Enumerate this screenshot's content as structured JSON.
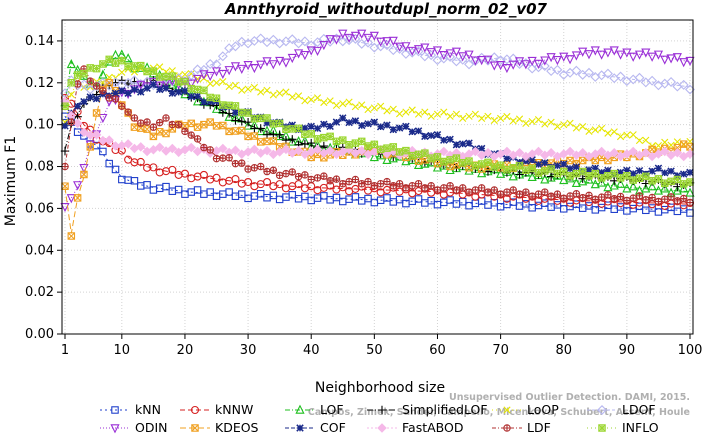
{
  "chart_data": {
    "type": "line",
    "title": "Annthyroid_withoutdupl_norm_02_v07",
    "xlabel": "Neighborhood size",
    "ylabel": "Maximum F1",
    "xlim": [
      1,
      100
    ],
    "ylim": [
      0.0,
      0.15
    ],
    "x_ticks": [
      1,
      10,
      20,
      30,
      40,
      50,
      60,
      70,
      80,
      90,
      100
    ],
    "y_ticks": [
      "0.00",
      "0.02",
      "0.04",
      "0.06",
      "0.08",
      "0.10",
      "0.12",
      "0.14"
    ],
    "grid": true,
    "legend_position": "bottom",
    "watermark": [
      "Campos, Zimek, Sander, Campello, Micenkova, Schubert, Assent, Houle",
      "Unsupervised Outlier Detection. DAMI, 2015."
    ],
    "series": [
      {
        "name": "kNN",
        "color": "#1f3fcc",
        "marker": "square",
        "dash": "2,3",
        "points": [
          [
            1,
            0.104
          ],
          [
            2,
            0.1
          ],
          [
            3,
            0.097
          ],
          [
            4,
            0.094
          ],
          [
            5,
            0.092
          ],
          [
            6,
            0.09
          ],
          [
            7,
            0.086
          ],
          [
            8,
            0.082
          ],
          [
            9,
            0.078
          ],
          [
            10,
            0.075
          ],
          [
            12,
            0.072
          ],
          [
            15,
            0.07
          ],
          [
            20,
            0.068
          ],
          [
            25,
            0.067
          ],
          [
            30,
            0.066
          ],
          [
            40,
            0.065
          ],
          [
            50,
            0.064
          ],
          [
            60,
            0.063
          ],
          [
            70,
            0.062
          ],
          [
            80,
            0.061
          ],
          [
            90,
            0.06
          ],
          [
            100,
            0.059
          ]
        ]
      },
      {
        "name": "kNNW",
        "color": "#d62020",
        "marker": "circle",
        "dash": "5,3",
        "points": [
          [
            1,
            0.114
          ],
          [
            2,
            0.11
          ],
          [
            3,
            0.105
          ],
          [
            4,
            0.1
          ],
          [
            5,
            0.097
          ],
          [
            6,
            0.094
          ],
          [
            7,
            0.092
          ],
          [
            8,
            0.09
          ],
          [
            10,
            0.087
          ],
          [
            12,
            0.082
          ],
          [
            15,
            0.079
          ],
          [
            20,
            0.076
          ],
          [
            25,
            0.074
          ],
          [
            30,
            0.072
          ],
          [
            40,
            0.07
          ],
          [
            50,
            0.069
          ],
          [
            60,
            0.068
          ],
          [
            70,
            0.066
          ],
          [
            80,
            0.064
          ],
          [
            90,
            0.063
          ],
          [
            100,
            0.062
          ]
        ]
      },
      {
        "name": "LOF",
        "color": "#1fbf1f",
        "marker": "triangle",
        "dash": "5,2,1,2",
        "points": [
          [
            1,
            0.11
          ],
          [
            2,
            0.13
          ],
          [
            3,
            0.126
          ],
          [
            4,
            0.122
          ],
          [
            5,
            0.12
          ],
          [
            6,
            0.118
          ],
          [
            7,
            0.125
          ],
          [
            8,
            0.13
          ],
          [
            10,
            0.134
          ],
          [
            12,
            0.128
          ],
          [
            15,
            0.125
          ],
          [
            20,
            0.115
          ],
          [
            25,
            0.108
          ],
          [
            30,
            0.1
          ],
          [
            35,
            0.095
          ],
          [
            40,
            0.09
          ],
          [
            45,
            0.088
          ],
          [
            50,
            0.085
          ],
          [
            55,
            0.083
          ],
          [
            60,
            0.08
          ],
          [
            70,
            0.077
          ],
          [
            80,
            0.074
          ],
          [
            90,
            0.07
          ],
          [
            100,
            0.068
          ]
        ]
      },
      {
        "name": "SimplifiedLOF",
        "color": "#000000",
        "marker": "plus",
        "dash": "6,2,1,2",
        "points": [
          [
            1,
            0.088
          ],
          [
            2,
            0.1
          ],
          [
            3,
            0.105
          ],
          [
            4,
            0.11
          ],
          [
            5,
            0.112
          ],
          [
            6,
            0.115
          ],
          [
            7,
            0.118
          ],
          [
            8,
            0.12
          ],
          [
            10,
            0.12
          ],
          [
            15,
            0.12
          ],
          [
            20,
            0.115
          ],
          [
            25,
            0.108
          ],
          [
            30,
            0.1
          ],
          [
            35,
            0.094
          ],
          [
            40,
            0.09
          ],
          [
            45,
            0.088
          ],
          [
            50,
            0.087
          ],
          [
            55,
            0.085
          ],
          [
            60,
            0.082
          ],
          [
            70,
            0.078
          ],
          [
            80,
            0.076
          ],
          [
            90,
            0.074
          ],
          [
            100,
            0.071
          ]
        ]
      },
      {
        "name": "LoOP",
        "color": "#e6e600",
        "marker": "x",
        "dash": "1,3",
        "points": [
          [
            1,
            0.1
          ],
          [
            2,
            0.115
          ],
          [
            3,
            0.12
          ],
          [
            5,
            0.118
          ],
          [
            8,
            0.122
          ],
          [
            10,
            0.125
          ],
          [
            15,
            0.127
          ],
          [
            20,
            0.124
          ],
          [
            25,
            0.12
          ],
          [
            30,
            0.117
          ],
          [
            35,
            0.115
          ],
          [
            40,
            0.112
          ],
          [
            45,
            0.11
          ],
          [
            50,
            0.108
          ],
          [
            55,
            0.106
          ],
          [
            60,
            0.105
          ],
          [
            70,
            0.103
          ],
          [
            80,
            0.1
          ],
          [
            90,
            0.095
          ],
          [
            95,
            0.09
          ],
          [
            100,
            0.092
          ]
        ]
      },
      {
        "name": "LDOF",
        "color": "#b8b8f0",
        "marker": "diamond",
        "dash": "3,2",
        "points": [
          [
            1,
            0.115
          ],
          [
            2,
            0.12
          ],
          [
            5,
            0.118
          ],
          [
            10,
            0.12
          ],
          [
            15,
            0.12
          ],
          [
            20,
            0.122
          ],
          [
            25,
            0.13
          ],
          [
            28,
            0.138
          ],
          [
            30,
            0.14
          ],
          [
            35,
            0.14
          ],
          [
            40,
            0.139
          ],
          [
            45,
            0.141
          ],
          [
            50,
            0.138
          ],
          [
            55,
            0.135
          ],
          [
            60,
            0.132
          ],
          [
            65,
            0.13
          ],
          [
            70,
            0.132
          ],
          [
            75,
            0.128
          ],
          [
            80,
            0.125
          ],
          [
            85,
            0.124
          ],
          [
            90,
            0.122
          ],
          [
            95,
            0.12
          ],
          [
            100,
            0.118
          ]
        ]
      },
      {
        "name": "ODIN",
        "color": "#9a2fd6",
        "marker": "triangle-down",
        "dash": "1,2",
        "points": [
          [
            1,
            0.062
          ],
          [
            2,
            0.065
          ],
          [
            3,
            0.07
          ],
          [
            5,
            0.09
          ],
          [
            8,
            0.11
          ],
          [
            10,
            0.115
          ],
          [
            15,
            0.12
          ],
          [
            20,
            0.12
          ],
          [
            25,
            0.125
          ],
          [
            30,
            0.128
          ],
          [
            35,
            0.13
          ],
          [
            40,
            0.135
          ],
          [
            45,
            0.143
          ],
          [
            50,
            0.142
          ],
          [
            55,
            0.137
          ],
          [
            60,
            0.135
          ],
          [
            65,
            0.133
          ],
          [
            70,
            0.128
          ],
          [
            75,
            0.13
          ],
          [
            80,
            0.132
          ],
          [
            85,
            0.135
          ],
          [
            90,
            0.134
          ],
          [
            95,
            0.133
          ],
          [
            100,
            0.13
          ]
        ]
      },
      {
        "name": "KDEOS",
        "color": "#f0a020",
        "marker": "square-x",
        "dash": "6,3",
        "points": [
          [
            1,
            0.07
          ],
          [
            2,
            0.048
          ],
          [
            3,
            0.065
          ],
          [
            4,
            0.075
          ],
          [
            5,
            0.09
          ],
          [
            6,
            0.105
          ],
          [
            7,
            0.118
          ],
          [
            8,
            0.12
          ],
          [
            10,
            0.11
          ],
          [
            12,
            0.1
          ],
          [
            15,
            0.095
          ],
          [
            20,
            0.1
          ],
          [
            25,
            0.1
          ],
          [
            30,
            0.095
          ],
          [
            35,
            0.09
          ],
          [
            40,
            0.085
          ],
          [
            45,
            0.086
          ],
          [
            50,
            0.088
          ],
          [
            55,
            0.085
          ],
          [
            60,
            0.082
          ],
          [
            65,
            0.08
          ],
          [
            70,
            0.08
          ],
          [
            80,
            0.082
          ],
          [
            90,
            0.085
          ],
          [
            100,
            0.09
          ]
        ]
      },
      {
        "name": "COF",
        "color": "#1a2a8a",
        "marker": "star",
        "dash": "4,2",
        "points": [
          [
            1,
            0.1
          ],
          [
            2,
            0.105
          ],
          [
            3,
            0.11
          ],
          [
            5,
            0.112
          ],
          [
            8,
            0.115
          ],
          [
            10,
            0.115
          ],
          [
            15,
            0.118
          ],
          [
            20,
            0.115
          ],
          [
            25,
            0.11
          ],
          [
            30,
            0.105
          ],
          [
            35,
            0.1
          ],
          [
            40,
            0.098
          ],
          [
            45,
            0.102
          ],
          [
            50,
            0.1
          ],
          [
            55,
            0.098
          ],
          [
            60,
            0.094
          ],
          [
            65,
            0.09
          ],
          [
            70,
            0.085
          ],
          [
            75,
            0.082
          ],
          [
            80,
            0.08
          ],
          [
            85,
            0.078
          ],
          [
            90,
            0.077
          ],
          [
            95,
            0.078
          ],
          [
            100,
            0.076
          ]
        ]
      },
      {
        "name": "FastABOD",
        "color": "#f5b8e8",
        "marker": "diamond-filled",
        "dash": "2,2",
        "points": [
          [
            1,
            0.11
          ],
          [
            3,
            0.1
          ],
          [
            5,
            0.095
          ],
          [
            10,
            0.09
          ],
          [
            15,
            0.088
          ],
          [
            20,
            0.088
          ],
          [
            30,
            0.087
          ],
          [
            40,
            0.087
          ],
          [
            50,
            0.087
          ],
          [
            60,
            0.086
          ],
          [
            70,
            0.086
          ],
          [
            80,
            0.086
          ],
          [
            90,
            0.086
          ],
          [
            100,
            0.086
          ]
        ]
      },
      {
        "name": "LDF",
        "color": "#b03030",
        "marker": "circle-plus",
        "dash": "4,2,1,2",
        "points": [
          [
            1,
            0.08
          ],
          [
            2,
            0.1
          ],
          [
            3,
            0.12
          ],
          [
            4,
            0.126
          ],
          [
            5,
            0.122
          ],
          [
            7,
            0.115
          ],
          [
            10,
            0.11
          ],
          [
            12,
            0.102
          ],
          [
            15,
            0.1
          ],
          [
            17,
            0.102
          ],
          [
            20,
            0.098
          ],
          [
            22,
            0.092
          ],
          [
            25,
            0.085
          ],
          [
            30,
            0.08
          ],
          [
            35,
            0.077
          ],
          [
            40,
            0.075
          ],
          [
            45,
            0.073
          ],
          [
            50,
            0.072
          ],
          [
            60,
            0.07
          ],
          [
            70,
            0.068
          ],
          [
            80,
            0.066
          ],
          [
            90,
            0.065
          ],
          [
            100,
            0.064
          ]
        ]
      },
      {
        "name": "INFLO",
        "color": "#9bd630",
        "marker": "square-star",
        "dash": "1,3",
        "points": [
          [
            1,
            0.11
          ],
          [
            2,
            0.12
          ],
          [
            4,
            0.125
          ],
          [
            6,
            0.128
          ],
          [
            8,
            0.13
          ],
          [
            10,
            0.13
          ],
          [
            15,
            0.125
          ],
          [
            20,
            0.12
          ],
          [
            25,
            0.112
          ],
          [
            30,
            0.105
          ],
          [
            35,
            0.1
          ],
          [
            40,
            0.095
          ],
          [
            45,
            0.092
          ],
          [
            50,
            0.09
          ],
          [
            55,
            0.087
          ],
          [
            60,
            0.084
          ],
          [
            70,
            0.08
          ],
          [
            80,
            0.077
          ],
          [
            90,
            0.075
          ],
          [
            100,
            0.072
          ]
        ]
      }
    ]
  }
}
